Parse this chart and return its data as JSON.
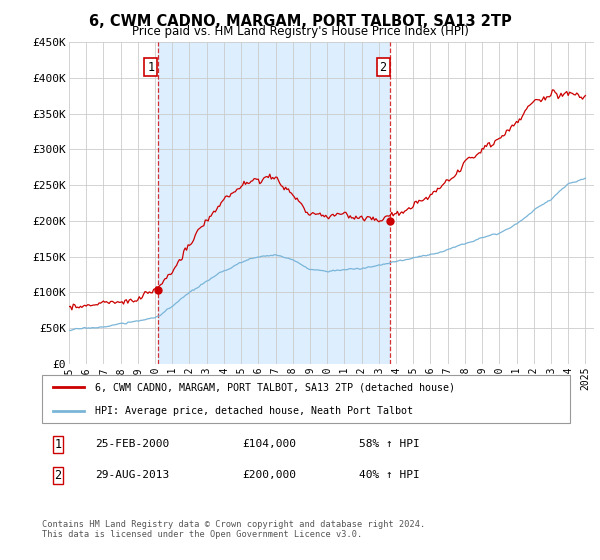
{
  "title": "6, CWM CADNO, MARGAM, PORT TALBOT, SA13 2TP",
  "subtitle": "Price paid vs. HM Land Registry's House Price Index (HPI)",
  "ylim": [
    0,
    450000
  ],
  "yticks": [
    0,
    50000,
    100000,
    150000,
    200000,
    250000,
    300000,
    350000,
    400000,
    450000
  ],
  "ytick_labels": [
    "£0",
    "£50K",
    "£100K",
    "£150K",
    "£200K",
    "£250K",
    "£300K",
    "£350K",
    "£400K",
    "£450K"
  ],
  "sale1_date_num": 2000.15,
  "sale1_price": 104000,
  "sale1_label": "1",
  "sale1_date_str": "25-FEB-2000",
  "sale1_price_str": "£104,000",
  "sale1_hpi_str": "58% ↑ HPI",
  "sale2_date_num": 2013.65,
  "sale2_price": 200000,
  "sale2_label": "2",
  "sale2_date_str": "29-AUG-2013",
  "sale2_price_str": "£200,000",
  "sale2_hpi_str": "40% ↑ HPI",
  "hpi_color": "#7ab5d8",
  "price_color": "#cc0000",
  "vline_color": "#cc0000",
  "fill_color": "#ddeeff",
  "legend_label1": "6, CWM CADNO, MARGAM, PORT TALBOT, SA13 2TP (detached house)",
  "legend_label2": "HPI: Average price, detached house, Neath Port Talbot",
  "footer": "Contains HM Land Registry data © Crown copyright and database right 2024.\nThis data is licensed under the Open Government Licence v3.0."
}
